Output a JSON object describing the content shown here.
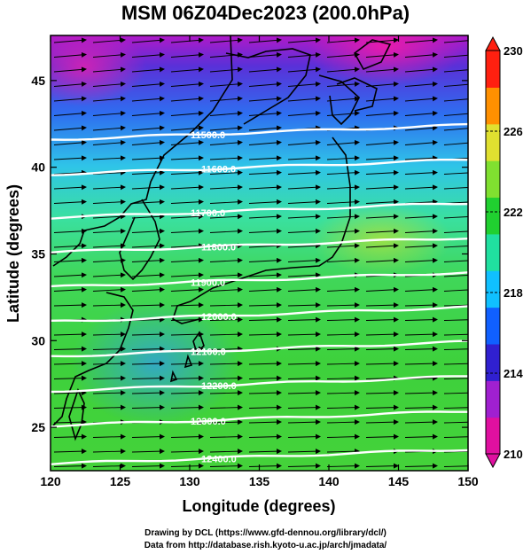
{
  "title": "MSM 06Z04Dec2023 (200.0hPa)",
  "xaxis": {
    "label": "Longitude (degrees)",
    "ticks": [
      "120",
      "125",
      "130",
      "135",
      "140",
      "145",
      "150"
    ],
    "range": [
      120,
      150
    ]
  },
  "yaxis": {
    "label": "Latitude  (degrees)",
    "ticks": [
      "25",
      "30",
      "35",
      "40",
      "45"
    ],
    "range": [
      22.5,
      47.6
    ]
  },
  "colorbar": {
    "ticks": [
      "210",
      "214",
      "218",
      "222",
      "226",
      "230"
    ],
    "range": [
      210,
      230
    ],
    "colors": [
      "#e010a0",
      "#a020d0",
      "#3020d0",
      "#1060ff",
      "#10c0ff",
      "#20e0a0",
      "#20d030",
      "#80e030",
      "#e0e030",
      "#ff9000",
      "#ff2010"
    ]
  },
  "contours": [
    {
      "label": "11500.0",
      "lat": 42.0
    },
    {
      "label": "11600.0",
      "lat": 40.0
    },
    {
      "label": "11700.0",
      "lat": 37.5
    },
    {
      "label": "11800.0",
      "lat": 35.5
    },
    {
      "label": "11900.0",
      "lat": 33.5
    },
    {
      "label": "12000.0",
      "lat": 31.5
    },
    {
      "label": "12100.0",
      "lat": 29.5
    },
    {
      "label": "12200.0",
      "lat": 27.5
    },
    {
      "label": "12300.0",
      "lat": 25.5
    },
    {
      "label": "12400.0",
      "lat": 23.3
    }
  ],
  "credits": [
    "Drawing by DCL (https://www.gfd-dennou.org/library/dcl/)",
    "Data from http://database.rish.kyoto-u.ac.jp/arch/jmadata/"
  ]
}
